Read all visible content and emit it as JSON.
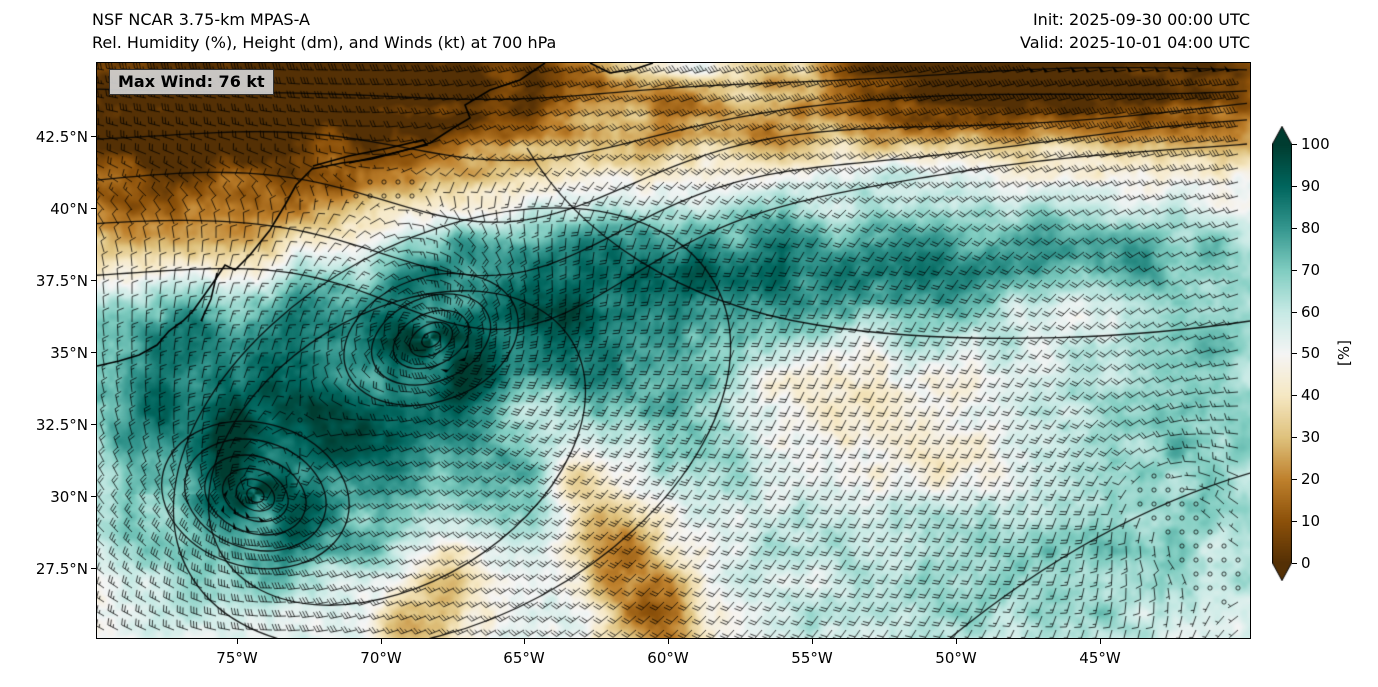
{
  "header": {
    "title": "NSF NCAR 3.75-km MPAS-A",
    "subtitle": "Rel. Humidity (%), Height (dm), and Winds (kt) at 700 hPa",
    "init_time": "Init: 2025-09-30 00:00 UTC",
    "valid_time": "Valid: 2025-10-01 04:00 UTC"
  },
  "map": {
    "max_wind_label": "Max Wind: 76 kt"
  },
  "axes": {
    "y_ticks": [
      "42.5°N",
      "40°N",
      "37.5°N",
      "35°N",
      "32.5°N",
      "30°N",
      "27.5°N"
    ],
    "x_ticks": [
      "75°W",
      "70°W",
      "65°W",
      "60°W",
      "55°W",
      "50°W",
      "45°W"
    ]
  },
  "colorbar": {
    "ticks": [
      "100",
      "90",
      "80",
      "70",
      "60",
      "50",
      "40",
      "30",
      "20",
      "10",
      "0"
    ],
    "label": "[%]"
  },
  "chart_data": {
    "type": "heatmap",
    "title": "NSF NCAR 3.75-km MPAS-A",
    "subtitle": "Rel. Humidity (%), Height (dm), and Winds (kt) at 700 hPa",
    "init_time": "2025-09-30 00:00 UTC",
    "valid_time": "2025-10-01 04:00 UTC",
    "max_wind_kt": 76,
    "field": "relative humidity at 700 hPa",
    "field_units": "%",
    "lon_range": [
      -79.9,
      -39.9
    ],
    "lat_range": [
      25.1,
      45.1
    ],
    "x_tick_values_deg_west": [
      75,
      70,
      65,
      60,
      55,
      50,
      45
    ],
    "y_tick_values_deg_north": [
      42.5,
      40,
      37.5,
      35,
      32.5,
      30,
      27.5
    ],
    "grid": false,
    "colorbar": {
      "label": "[%]",
      "min": 0,
      "max": 100,
      "tick_values": [
        0,
        10,
        20,
        30,
        40,
        50,
        60,
        70,
        80,
        90,
        100
      ],
      "colormap": "brown-white-teal diverging (BrBG-like)",
      "colormap_stops": [
        [
          84,
          48,
          5
        ],
        [
          140,
          81,
          10
        ],
        [
          191,
          129,
          45
        ],
        [
          223,
          194,
          125
        ],
        [
          246,
          232,
          195
        ],
        [
          245,
          245,
          245
        ],
        [
          199,
          234,
          229
        ],
        [
          128,
          205,
          193
        ],
        [
          53,
          151,
          143
        ],
        [
          1,
          102,
          94
        ],
        [
          0,
          60,
          48
        ]
      ]
    },
    "overlays": [
      "relative humidity shading (%)",
      "geopotential height contours (dm)",
      "wind barbs (kt)",
      "coastlines"
    ],
    "features": [
      {
        "name": "cyclone-low-1",
        "lon": -68.3,
        "lat": 35.5,
        "description": "closed low with tight height contours and spiral moist bands"
      },
      {
        "name": "cyclone-low-2",
        "lon": -74.4,
        "lat": 30.1,
        "description": "second closed low with deep moist core southwest of the first"
      },
      {
        "name": "calm-region",
        "lon": -43.0,
        "lat": 30.0,
        "description": "light/calm winds drawn as open circles near 45°W 30°N"
      },
      {
        "name": "dry-band-north",
        "description": "dry brown band across the north of the domain (north of ~40°N)"
      },
      {
        "name": "dry-slot",
        "description": "curved dry slot wrapping between and around the two lows"
      },
      {
        "name": "moist-band-east",
        "description": "moist teal band extending east-northeast near 38°N toward the east edge"
      }
    ]
  }
}
